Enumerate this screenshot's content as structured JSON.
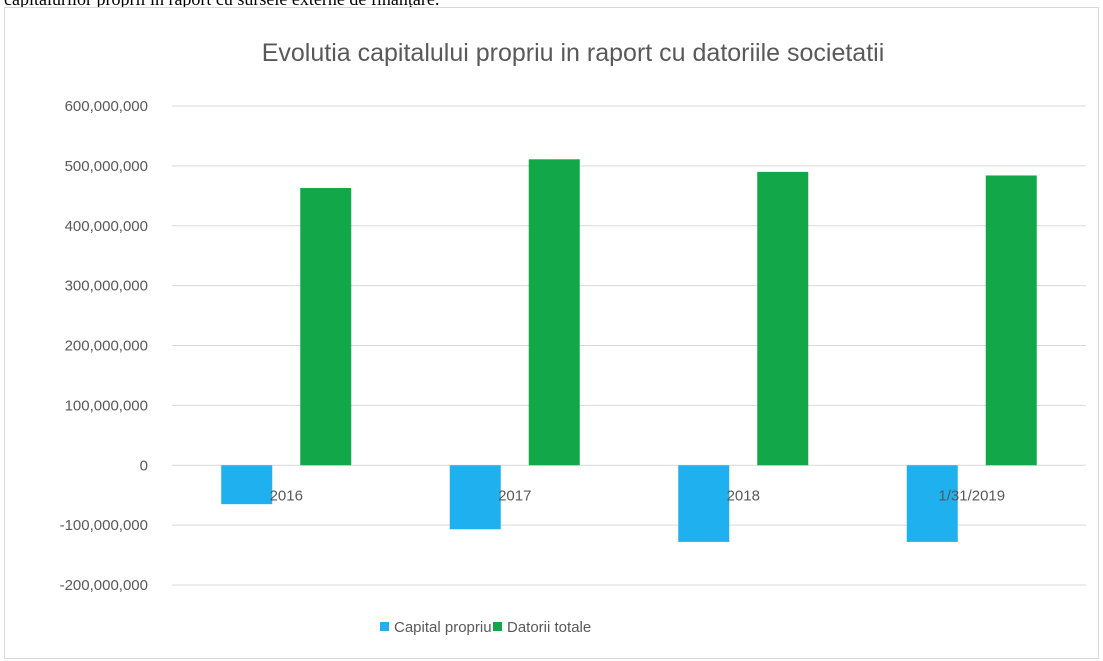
{
  "page": {
    "top_text": "capitalurilor proprii în raport cu sursele externe de finanțare."
  },
  "colors": {
    "capital": "#1fb0ef",
    "datorii": "#12a84a",
    "grid": "#d9d9d9",
    "text": "#595959"
  },
  "chart_data": {
    "type": "bar",
    "title": "Evolutia capitalului propriu in raport cu datoriile societatii",
    "xlabel": "",
    "ylabel": "",
    "categories": [
      "2016",
      "2017",
      "2018",
      "1/31/2019"
    ],
    "series": [
      {
        "name": "Capital propriu",
        "values": [
          -65000000,
          -107000000,
          -128000000,
          -128000000
        ]
      },
      {
        "name": "Datorii totale",
        "values": [
          463000000,
          511000000,
          490000000,
          484000000
        ]
      }
    ],
    "ylim": [
      -200000000,
      600000000
    ],
    "yticks": [
      600000000,
      500000000,
      400000000,
      300000000,
      200000000,
      100000000,
      0,
      -100000000,
      -200000000
    ],
    "ytick_labels": [
      "600,000,000",
      "500,000,000",
      "400,000,000",
      "300,000,000",
      "200,000,000",
      "100,000,000",
      "0",
      "-100,000,000",
      "-200,000,000"
    ],
    "grid": true,
    "legend_position": "bottom"
  }
}
